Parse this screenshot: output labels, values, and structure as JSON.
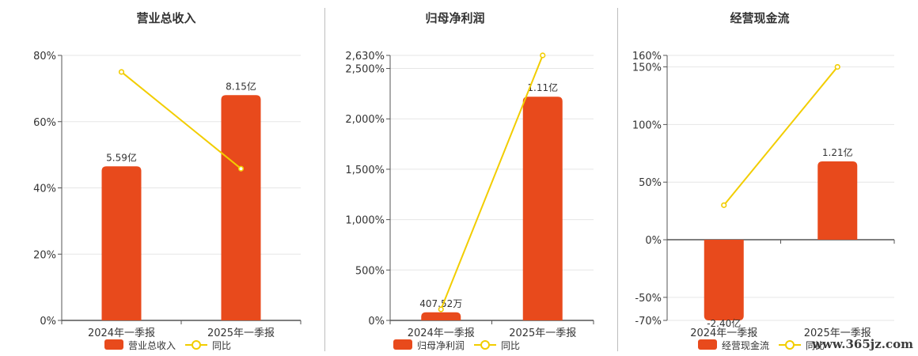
{
  "watermark": "www.365jz.com",
  "colors": {
    "bar": "#E84A1C",
    "line": "#F2CD00",
    "axis": "#555555",
    "grid": "#e6e6e6",
    "text": "#333333"
  },
  "chart_data": [
    {
      "type": "bar",
      "title": "营业总收入",
      "categories": [
        "2024年一季报",
        "2025年一季报"
      ],
      "series": [
        {
          "name": "营业总收入",
          "type": "bar",
          "values": [
            46.5,
            68.0
          ],
          "labels": [
            "5.59亿",
            "8.15亿"
          ]
        },
        {
          "name": "同比",
          "type": "line",
          "values": [
            75.0,
            45.8
          ]
        }
      ],
      "yticks": [
        0,
        20,
        40,
        60,
        80
      ],
      "ytick_labels": [
        "0%",
        "20%",
        "40%",
        "60%",
        "80%"
      ],
      "ylim": [
        0,
        80
      ],
      "legend": "bottom",
      "grid": true
    },
    {
      "type": "bar",
      "title": "归母净利润",
      "categories": [
        "2024年一季报",
        "2025年一季报"
      ],
      "series": [
        {
          "name": "归母净利润",
          "type": "bar",
          "values": [
            80,
            2220
          ],
          "labels": [
            "407.52万",
            "1.11亿"
          ]
        },
        {
          "name": "同比",
          "type": "line",
          "values": [
            110,
            2630
          ]
        }
      ],
      "yticks": [
        0,
        500,
        1000,
        1500,
        2000,
        2500,
        2630
      ],
      "ytick_labels": [
        "0%",
        "500%",
        "1,000%",
        "1,500%",
        "2,000%",
        "2,500%",
        "2,630%"
      ],
      "ylim": [
        0,
        2630
      ],
      "legend": "bottom",
      "grid": true
    },
    {
      "type": "bar",
      "title": "经营现金流",
      "categories": [
        "2024年一季报",
        "2025年一季报"
      ],
      "series": [
        {
          "name": "经营现金流",
          "type": "bar",
          "values": [
            -70,
            68
          ],
          "labels": [
            "-2.40亿",
            "1.21亿"
          ]
        },
        {
          "name": "同比",
          "type": "line",
          "values": [
            30,
            150
          ]
        }
      ],
      "yticks": [
        -70,
        -50,
        0,
        50,
        100,
        150,
        160
      ],
      "ytick_labels": [
        "-70%",
        "-50%",
        "0%",
        "50%",
        "100%",
        "150%",
        "160%"
      ],
      "ylim": [
        -70,
        160
      ],
      "legend": "bottom",
      "grid": true
    }
  ]
}
